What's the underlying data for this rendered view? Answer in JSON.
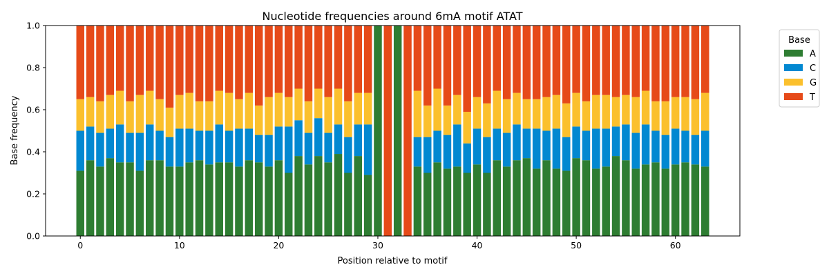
{
  "chart_data": {
    "type": "bar",
    "stacked": true,
    "title": "Nucleotide frequencies around 6mA motif ATAT",
    "xlabel": "Position relative to motif",
    "ylabel": "Base frequency",
    "xlim": [
      -3.5,
      66.5
    ],
    "ylim": [
      0,
      1
    ],
    "xticks": [
      0,
      10,
      20,
      30,
      40,
      50,
      60
    ],
    "yticks": [
      "0.0",
      "0.2",
      "0.4",
      "0.6",
      "0.8",
      "1.0"
    ],
    "grid": false,
    "legend": {
      "title": "Base",
      "placement": "outside-right-top"
    },
    "x": [
      0,
      1,
      2,
      3,
      4,
      5,
      6,
      7,
      8,
      9,
      10,
      11,
      12,
      13,
      14,
      15,
      16,
      17,
      18,
      19,
      20,
      21,
      22,
      23,
      24,
      25,
      26,
      27,
      28,
      29,
      30,
      31,
      32,
      33,
      34,
      35,
      36,
      37,
      38,
      39,
      40,
      41,
      42,
      43,
      44,
      45,
      46,
      47,
      48,
      49,
      50,
      51,
      52,
      53,
      54,
      55,
      56,
      57,
      58,
      59,
      60,
      61,
      62,
      63
    ],
    "series": [
      {
        "name": "A",
        "color": "#2e7d32",
        "values": [
          0.31,
          0.36,
          0.33,
          0.37,
          0.35,
          0.35,
          0.31,
          0.36,
          0.36,
          0.33,
          0.33,
          0.35,
          0.36,
          0.34,
          0.35,
          0.35,
          0.33,
          0.36,
          0.35,
          0.33,
          0.36,
          0.3,
          0.38,
          0.34,
          0.38,
          0.35,
          0.39,
          0.3,
          0.38,
          0.29,
          1.0,
          0.0,
          1.0,
          0.0,
          0.33,
          0.3,
          0.35,
          0.32,
          0.33,
          0.3,
          0.34,
          0.3,
          0.36,
          0.33,
          0.36,
          0.37,
          0.32,
          0.36,
          0.32,
          0.31,
          0.37,
          0.36,
          0.32,
          0.33,
          0.38,
          0.36,
          0.32,
          0.34,
          0.35,
          0.32,
          0.34,
          0.35,
          0.34,
          0.33
        ]
      },
      {
        "name": "C",
        "color": "#0288d1",
        "values": [
          0.19,
          0.16,
          0.16,
          0.14,
          0.18,
          0.14,
          0.18,
          0.17,
          0.14,
          0.14,
          0.18,
          0.16,
          0.14,
          0.16,
          0.18,
          0.15,
          0.18,
          0.15,
          0.13,
          0.15,
          0.16,
          0.22,
          0.17,
          0.15,
          0.18,
          0.14,
          0.14,
          0.17,
          0.15,
          0.24,
          0.0,
          0.0,
          0.0,
          0.0,
          0.14,
          0.17,
          0.15,
          0.16,
          0.2,
          0.14,
          0.17,
          0.17,
          0.15,
          0.16,
          0.17,
          0.14,
          0.19,
          0.14,
          0.19,
          0.16,
          0.15,
          0.14,
          0.19,
          0.18,
          0.14,
          0.17,
          0.17,
          0.19,
          0.15,
          0.16,
          0.17,
          0.15,
          0.14,
          0.17
        ]
      },
      {
        "name": "G",
        "color": "#fbc02d",
        "values": [
          0.15,
          0.14,
          0.15,
          0.16,
          0.16,
          0.15,
          0.18,
          0.16,
          0.15,
          0.14,
          0.16,
          0.17,
          0.14,
          0.14,
          0.16,
          0.18,
          0.14,
          0.17,
          0.14,
          0.18,
          0.16,
          0.14,
          0.15,
          0.15,
          0.14,
          0.17,
          0.17,
          0.17,
          0.15,
          0.15,
          0.0,
          0.0,
          0.0,
          0.0,
          0.22,
          0.15,
          0.2,
          0.14,
          0.14,
          0.15,
          0.15,
          0.16,
          0.18,
          0.16,
          0.15,
          0.14,
          0.14,
          0.16,
          0.16,
          0.16,
          0.16,
          0.14,
          0.16,
          0.16,
          0.14,
          0.14,
          0.17,
          0.16,
          0.14,
          0.16,
          0.15,
          0.16,
          0.17,
          0.18
        ]
      },
      {
        "name": "T",
        "color": "#e64a19",
        "values": [
          0.35,
          0.34,
          0.36,
          0.33,
          0.31,
          0.36,
          0.33,
          0.31,
          0.35,
          0.39,
          0.33,
          0.32,
          0.36,
          0.36,
          0.31,
          0.32,
          0.35,
          0.32,
          0.38,
          0.34,
          0.32,
          0.34,
          0.3,
          0.36,
          0.3,
          0.34,
          0.3,
          0.36,
          0.32,
          0.32,
          0.0,
          1.0,
          0.0,
          1.0,
          0.31,
          0.38,
          0.3,
          0.38,
          0.33,
          0.41,
          0.34,
          0.37,
          0.31,
          0.35,
          0.32,
          0.35,
          0.35,
          0.34,
          0.33,
          0.37,
          0.32,
          0.36,
          0.33,
          0.33,
          0.34,
          0.33,
          0.34,
          0.31,
          0.36,
          0.36,
          0.34,
          0.34,
          0.35,
          0.32
        ]
      }
    ]
  }
}
